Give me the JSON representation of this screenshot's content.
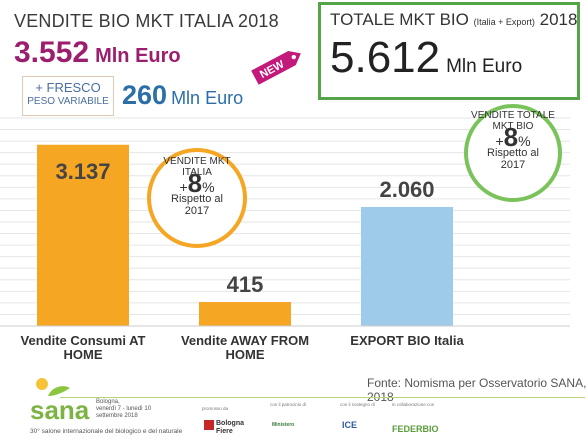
{
  "header": {
    "title_left": "VENDITE BIO MKT ITALIA 2018",
    "total_italia_value": "3.552",
    "total_italia_unit": "Mln Euro",
    "fresco_line1": "+ FRESCO",
    "fresco_line2": "PESO VARIABILE",
    "fresco_value": "260",
    "fresco_unit": "Mln Euro",
    "new_badge": "NEW"
  },
  "total_box": {
    "title_main": "TOTALE MKT BIO",
    "title_small": "(Italia + Export)",
    "title_year": "2018",
    "value": "5.612",
    "unit": "Mln Euro"
  },
  "bubble_italia": {
    "line1": "VENDITE MKT",
    "line2": "ITALIA",
    "pct_sign": "+",
    "pct_value": "8",
    "pct_unit": "%",
    "line3": "Rispetto al",
    "line4": "2017"
  },
  "bubble_totale": {
    "line1": "VENDITE TOTALE",
    "line2": "MKT BIO",
    "pct_sign": "+",
    "pct_value": "8",
    "pct_unit": "%",
    "line3": "Rispetto al",
    "line4": "2017"
  },
  "chart_data": {
    "type": "bar",
    "categories": [
      "Vendite Consumi AT HOME",
      "Vendite AWAY FROM HOME",
      "EXPORT BIO Italia"
    ],
    "category_lines": [
      [
        "Vendite Consumi AT",
        "HOME"
      ],
      [
        "Vendite AWAY FROM",
        "HOME"
      ],
      [
        "EXPORT BIO Italia"
      ]
    ],
    "values": [
      3137,
      415,
      2060
    ],
    "value_labels": [
      "3.137",
      "415",
      "2.060"
    ],
    "colors": [
      "#f5a623",
      "#f5a623",
      "#9ecbea"
    ],
    "ylim": [
      0,
      3600
    ],
    "grid": true
  },
  "source": "Fonte: Nomisma per Osservatorio SANA, 2018",
  "footer": {
    "sana_name": "sana",
    "sana_info_1": "Bologna,",
    "sana_info_2": "venerdì 7 - lunedì 10",
    "sana_info_3": "settembre 2018",
    "sana_sub": "30° salone internazionale del biologico e del naturale",
    "cap_1": "promosso da",
    "cap_2": "con il patrocinio di",
    "cap_3": "con il sostegno di",
    "cap_4": "in collaborazione con",
    "sponsor_1": "Bologna Fiere",
    "sponsor_2": "Ministero",
    "sponsor_3": "ICE",
    "sponsor_4": "FEDERBIO"
  }
}
